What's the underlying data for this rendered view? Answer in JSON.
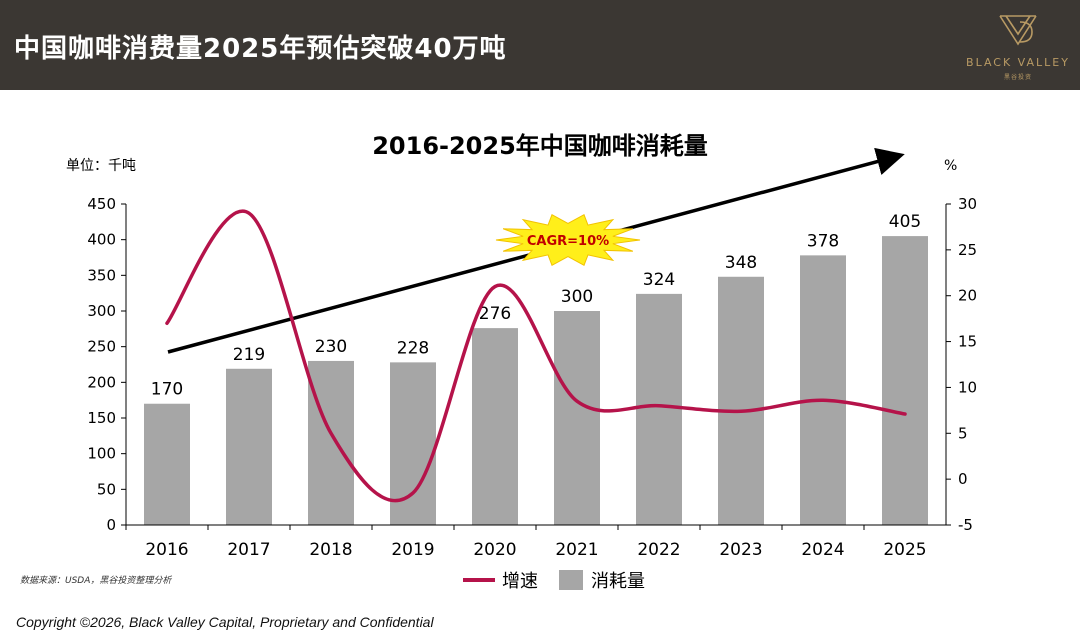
{
  "header": {
    "title": "中国咖啡消费量2025年预估突破40万吨",
    "logo_text": "BLACK VALLEY",
    "logo_sub": "黑谷投资"
  },
  "chart_data": {
    "type": "bar",
    "title": "2016-2025年中国咖啡消耗量",
    "left_axis_unit": "单位：千吨",
    "right_axis_unit": "%",
    "categories": [
      "2016",
      "2017",
      "2018",
      "2019",
      "2020",
      "2021",
      "2022",
      "2023",
      "2024",
      "2025"
    ],
    "series": [
      {
        "name": "消耗量",
        "type": "bar",
        "axis": "left",
        "color": "#a6a6a6",
        "values": [
          170,
          219,
          230,
          228,
          276,
          300,
          324,
          348,
          378,
          405
        ]
      },
      {
        "name": "增速",
        "type": "line",
        "axis": "right",
        "color": "#b5134a",
        "values": [
          17,
          29,
          5,
          -1.5,
          21,
          8.5,
          8,
          7.4,
          8.6,
          7.1
        ]
      }
    ],
    "ylim_left": [
      0,
      450
    ],
    "yticks_left": [
      0,
      50,
      100,
      150,
      200,
      250,
      300,
      350,
      400,
      450
    ],
    "ylim_right": [
      -5,
      30
    ],
    "yticks_right": [
      -5,
      0,
      5,
      10,
      15,
      20,
      25,
      30
    ],
    "annotation": "CAGR=10%",
    "source": "数据来源：USDA，黑谷投资整理分析",
    "legend_position": "bottom",
    "grid": false
  },
  "footer": {
    "copyright": "Copyright ©2026, Black Valley Capital, Proprietary and Confidential"
  }
}
